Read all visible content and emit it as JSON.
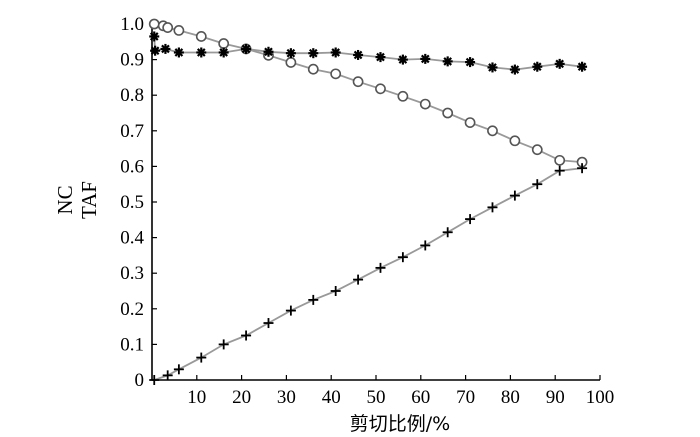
{
  "chart_data": {
    "type": "line",
    "title": "",
    "xlabel": "剪切比例/%",
    "ylabel_lines": [
      "NC",
      "TAF"
    ],
    "xlim": [
      0,
      100
    ],
    "ylim": [
      0,
      1.0
    ],
    "x_ticks": [
      "10",
      "20",
      "30",
      "40",
      "50",
      "60",
      "70",
      "80",
      "90",
      "100"
    ],
    "y_ticks": [
      "0",
      "0.1",
      "0.2",
      "0.3",
      "0.4",
      "0.5",
      "0.6",
      "0.7",
      "0.8",
      "0.9",
      "1.0"
    ],
    "grid": false,
    "line_color": "#999999",
    "marker_color": "#000000",
    "series": [
      {
        "marker": "circle",
        "x": [
          0.5,
          2.5,
          3.5,
          6,
          11,
          16,
          21,
          26,
          31,
          36,
          41,
          46,
          51,
          56,
          61,
          66,
          71,
          76,
          81,
          86,
          91,
          96
        ],
        "y": [
          1.0,
          0.995,
          0.99,
          0.982,
          0.965,
          0.945,
          0.93,
          0.912,
          0.892,
          0.873,
          0.86,
          0.838,
          0.818,
          0.797,
          0.775,
          0.75,
          0.723,
          0.7,
          0.672,
          0.647,
          0.617,
          0.612
        ]
      },
      {
        "marker": "asterisk",
        "x": [
          0.5,
          0.7,
          3,
          6,
          11,
          16,
          21,
          26,
          31,
          36,
          41,
          46,
          51,
          56,
          61,
          66,
          71,
          76,
          81,
          86,
          91,
          96
        ],
        "y": [
          0.965,
          0.925,
          0.93,
          0.92,
          0.92,
          0.92,
          0.93,
          0.922,
          0.918,
          0.918,
          0.92,
          0.913,
          0.907,
          0.9,
          0.902,
          0.895,
          0.893,
          0.878,
          0.872,
          0.88,
          0.888,
          0.88
        ]
      },
      {
        "marker": "plus",
        "x": [
          0.5,
          3.5,
          6,
          11,
          16,
          21,
          26,
          31,
          36,
          41,
          46,
          51,
          56,
          61,
          66,
          71,
          76,
          81,
          86,
          91,
          96
        ],
        "y": [
          0.0,
          0.013,
          0.03,
          0.063,
          0.1,
          0.125,
          0.16,
          0.195,
          0.225,
          0.25,
          0.282,
          0.315,
          0.345,
          0.378,
          0.415,
          0.452,
          0.485,
          0.518,
          0.55,
          0.588,
          0.595
        ]
      }
    ]
  }
}
